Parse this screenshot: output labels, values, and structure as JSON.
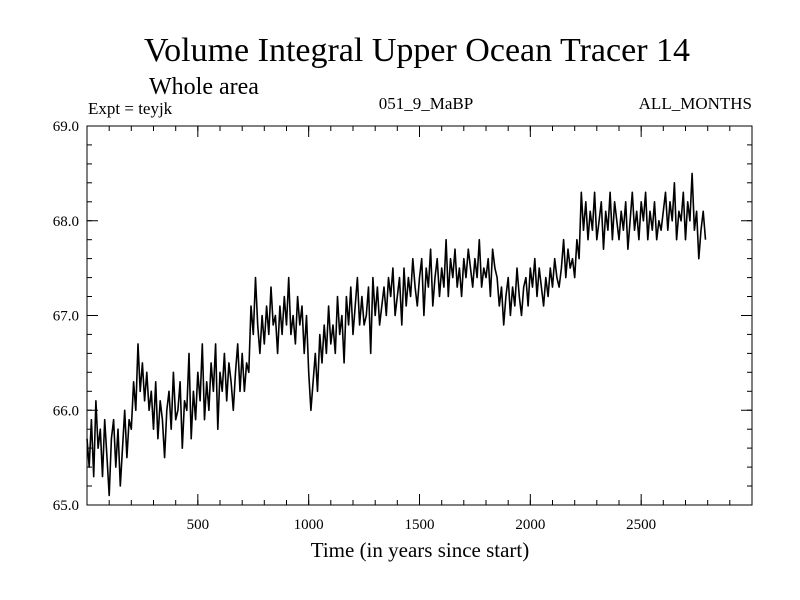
{
  "chart_data": {
    "type": "line",
    "title": "Volume Integral Upper Ocean Tracer 14",
    "subtitle": "Whole area",
    "experiment": "Expt = teyjk",
    "run_id": "051_9_MaBP",
    "months": "ALL_MONTHS",
    "xlabel": "Time (in years since start)",
    "ylabel": "",
    "xlim": [
      0,
      3000
    ],
    "ylim": [
      65.0,
      69.0
    ],
    "x_ticks": [
      500,
      1000,
      1500,
      2000,
      2500
    ],
    "x_tick_labels": [
      "500",
      "1000",
      "1500",
      "2000",
      "2500"
    ],
    "y_ticks": [
      65.0,
      66.0,
      67.0,
      68.0,
      69.0
    ],
    "y_tick_labels": [
      "65.0",
      "66.0",
      "67.0",
      "68.0",
      "69.0"
    ],
    "series": [
      {
        "name": "Volume Integral Upper Ocean Tracer 14",
        "x_start": 0,
        "x_step": 10,
        "values": [
          65.7,
          65.4,
          65.9,
          65.3,
          66.1,
          65.6,
          65.8,
          65.3,
          65.9,
          65.5,
          65.1,
          65.7,
          65.9,
          65.4,
          65.8,
          65.2,
          65.6,
          66.0,
          65.5,
          65.9,
          65.8,
          66.3,
          66.0,
          66.7,
          66.2,
          66.5,
          66.1,
          66.4,
          66.0,
          66.2,
          65.8,
          66.3,
          65.7,
          66.1,
          65.9,
          65.5,
          66.0,
          66.2,
          65.8,
          66.4,
          65.9,
          66.0,
          66.3,
          65.6,
          66.1,
          66.0,
          66.6,
          65.7,
          66.2,
          65.9,
          66.4,
          66.1,
          66.7,
          65.9,
          66.3,
          66.0,
          66.5,
          66.2,
          66.7,
          65.8,
          66.4,
          66.2,
          66.6,
          66.1,
          66.5,
          66.3,
          66.0,
          66.4,
          66.7,
          66.2,
          66.6,
          66.2,
          66.5,
          66.4,
          67.1,
          66.8,
          67.4,
          66.9,
          66.6,
          67.0,
          66.7,
          67.1,
          66.8,
          67.3,
          66.9,
          67.0,
          66.6,
          67.1,
          66.8,
          67.2,
          66.9,
          67.4,
          66.8,
          67.0,
          66.7,
          67.2,
          66.9,
          67.1,
          66.6,
          67.0,
          66.4,
          66.0,
          66.3,
          66.6,
          66.2,
          66.8,
          66.5,
          66.9,
          66.6,
          67.1,
          66.7,
          66.9,
          66.6,
          67.2,
          66.8,
          67.0,
          66.5,
          67.2,
          66.9,
          67.3,
          66.8,
          67.1,
          67.4,
          66.9,
          67.2,
          66.9,
          67.0,
          67.3,
          66.6,
          67.4,
          67.0,
          67.3,
          66.9,
          67.1,
          67.3,
          67.0,
          67.4,
          67.2,
          67.5,
          67.0,
          67.2,
          67.4,
          66.9,
          67.5,
          67.1,
          67.4,
          67.2,
          67.6,
          67.3,
          67.1,
          67.4,
          67.6,
          67.0,
          67.5,
          67.3,
          67.7,
          67.1,
          67.4,
          67.6,
          67.2,
          67.5,
          67.3,
          67.8,
          67.2,
          67.6,
          67.4,
          67.7,
          67.3,
          67.5,
          67.2,
          67.6,
          67.4,
          67.7,
          67.5,
          67.3,
          67.6,
          67.4,
          67.8,
          67.3,
          67.5,
          67.4,
          67.6,
          67.2,
          67.7,
          67.5,
          67.4,
          67.1,
          67.3,
          66.9,
          67.2,
          67.4,
          67.0,
          67.3,
          67.1,
          67.5,
          67.2,
          67.0,
          67.3,
          67.4,
          67.1,
          67.5,
          67.3,
          67.6,
          67.2,
          67.5,
          67.3,
          67.1,
          67.4,
          67.2,
          67.5,
          67.3,
          67.6,
          67.4,
          67.3,
          67.5,
          67.8,
          67.4,
          67.7,
          67.5,
          67.6,
          67.4,
          67.8,
          67.6,
          68.3,
          67.9,
          68.2,
          67.8,
          68.1,
          67.9,
          68.3,
          67.8,
          68.0,
          68.2,
          67.7,
          68.1,
          67.9,
          68.3,
          67.8,
          68.2,
          68.0,
          67.8,
          68.1,
          67.9,
          68.2,
          67.7,
          68.0,
          68.3,
          67.9,
          68.1,
          67.8,
          68.2,
          68.0,
          68.3,
          67.8,
          68.1,
          67.9,
          68.2,
          67.8,
          68.0,
          67.9,
          68.1,
          68.3,
          67.9,
          68.2,
          68.0,
          68.4,
          67.8,
          68.1,
          68.0,
          68.3,
          67.8,
          68.2,
          68.0,
          68.5,
          67.9,
          68.1,
          67.6,
          67.9,
          68.1,
          67.8
        ]
      }
    ]
  }
}
